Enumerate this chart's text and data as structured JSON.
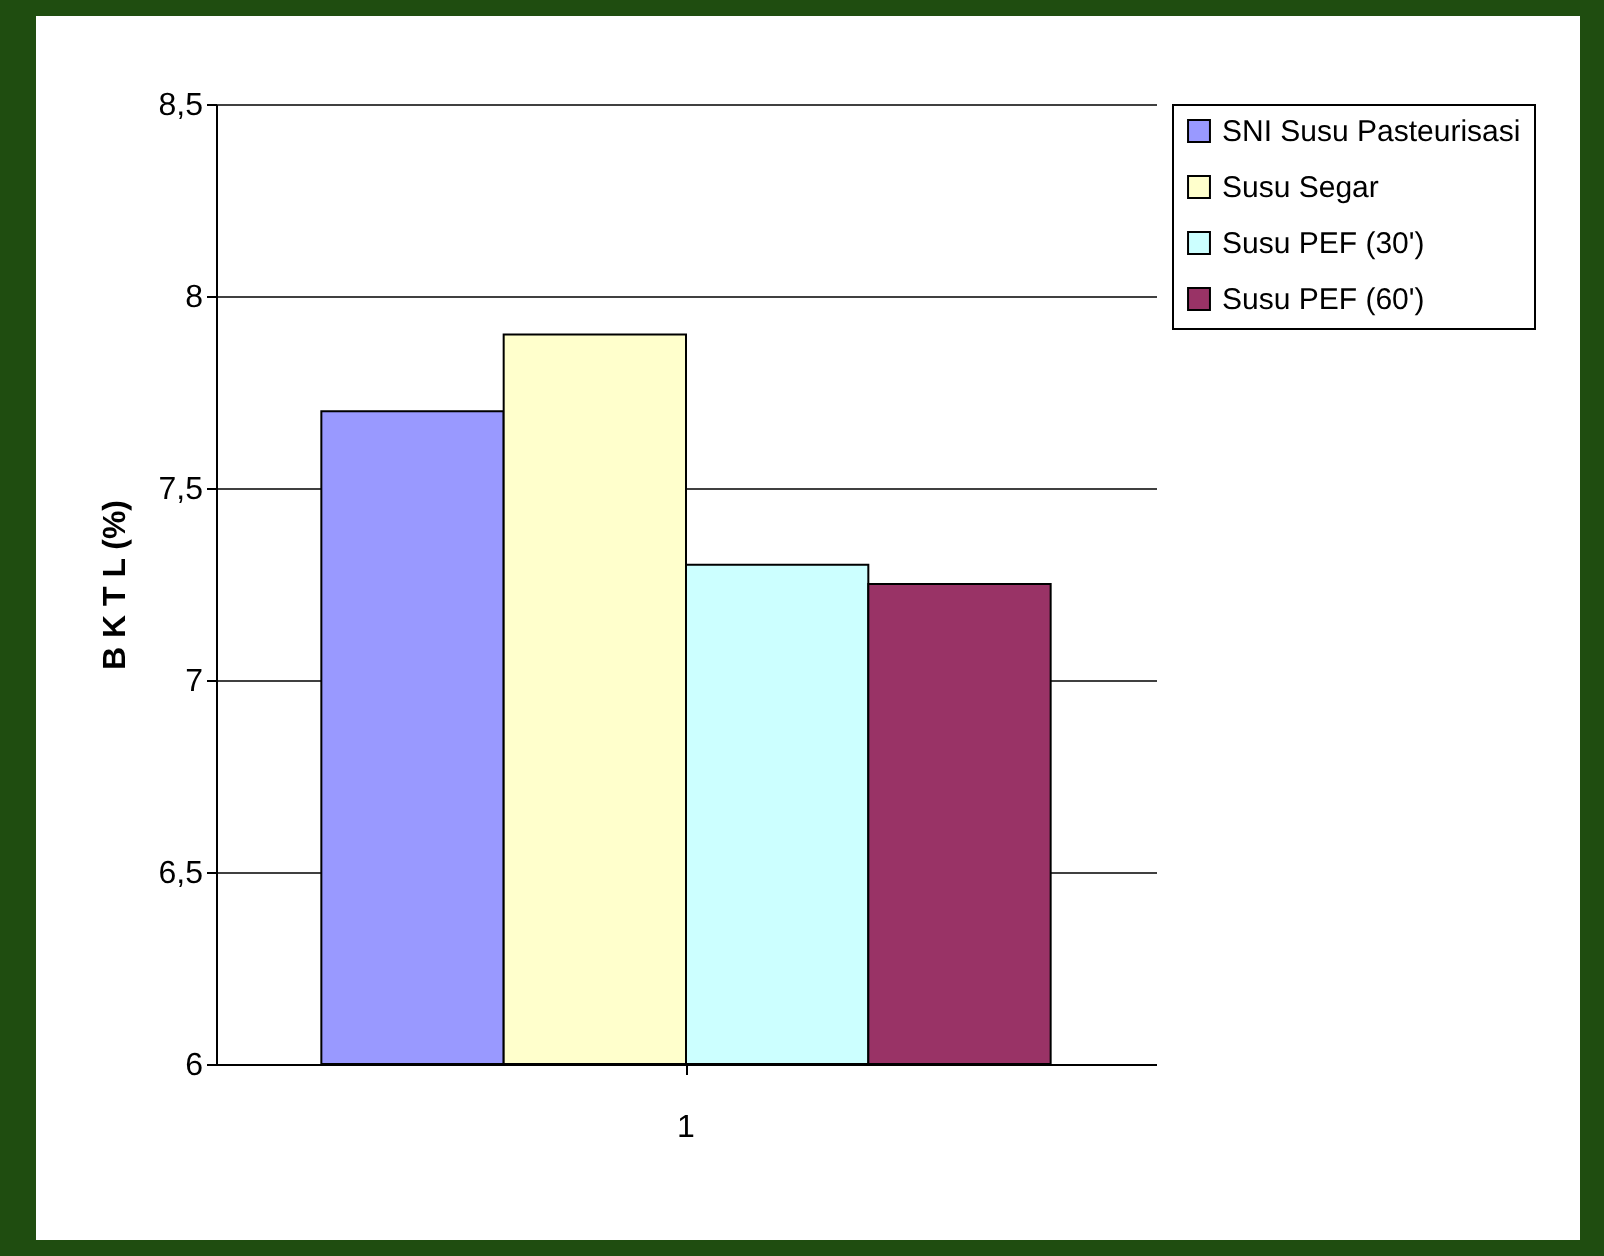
{
  "chart_data": {
    "type": "bar",
    "ylabel": "B K T L (%)",
    "categories": [
      "1"
    ],
    "series": [
      {
        "name": "SNI Susu Pasteurisasi",
        "color": "#9999ff",
        "values": [
          7.7
        ]
      },
      {
        "name": "Susu Segar",
        "color": "#ffffcc",
        "values": [
          7.9
        ]
      },
      {
        "name": "Susu PEF (30')",
        "color": "#ccffff",
        "values": [
          7.3
        ]
      },
      {
        "name": "Susu PEF (60')",
        "color": "#993366",
        "values": [
          7.25
        ]
      }
    ],
    "ylim": [
      6,
      8.5
    ],
    "yticks": [
      6,
      {
        "value": 6.5,
        "label": "6,5"
      },
      7,
      {
        "value": 7.5,
        "label": "7,5"
      },
      8,
      {
        "value": 8.5,
        "label": "8,5"
      }
    ],
    "grid": "y",
    "legend": "right"
  }
}
